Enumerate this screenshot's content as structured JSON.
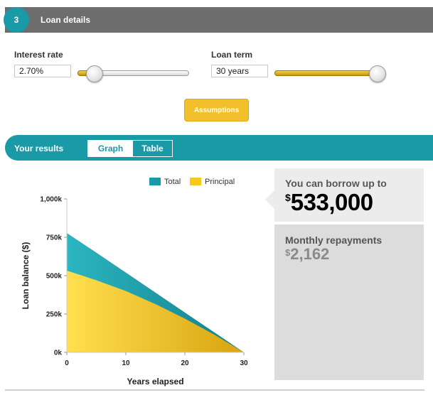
{
  "section": {
    "number": "3",
    "title": "Loan details"
  },
  "interest": {
    "label": "Interest rate",
    "value": "2.70%",
    "slider_fraction": 0.09
  },
  "term": {
    "label": "Loan term",
    "value": "30 years",
    "slider_fraction": 1.0
  },
  "assumptions_label": "Assumptions",
  "results": {
    "title": "Your results",
    "tabs": [
      {
        "label": "Graph",
        "active": true
      },
      {
        "label": "Table",
        "active": false
      }
    ]
  },
  "summary": {
    "borrow_label": "You can borrow up to",
    "borrow_currency": "$",
    "borrow_value": "533,000",
    "repay_label": "Monthly repayments",
    "repay_currency": "$",
    "repay_value": "2,162"
  },
  "colors": {
    "teal": "#1a9aa6",
    "gold": "#f2c02a",
    "header_gray": "#6d6d6d"
  },
  "chart_data": {
    "type": "area",
    "xlabel": "Years elapsed",
    "ylabel": "Loan balance ($)",
    "x_ticks": [
      "0",
      "10",
      "20",
      "30"
    ],
    "y_ticks": [
      "0k",
      "250k",
      "500k",
      "750k",
      "1,000k"
    ],
    "xlim": [
      0,
      30
    ],
    "ylim": [
      0,
      1000000
    ],
    "legend_position": "top",
    "x": [
      0,
      5,
      10,
      15,
      20,
      25,
      30
    ],
    "series": [
      {
        "name": "Total",
        "color": "#1a9aa6",
        "values": [
          778000,
          650000,
          520000,
          390000,
          260000,
          130000,
          0
        ]
      },
      {
        "name": "Principal",
        "color": "#f7c91c",
        "values": [
          533000,
          470000,
          400000,
          315000,
          220000,
          115000,
          0
        ]
      }
    ]
  }
}
